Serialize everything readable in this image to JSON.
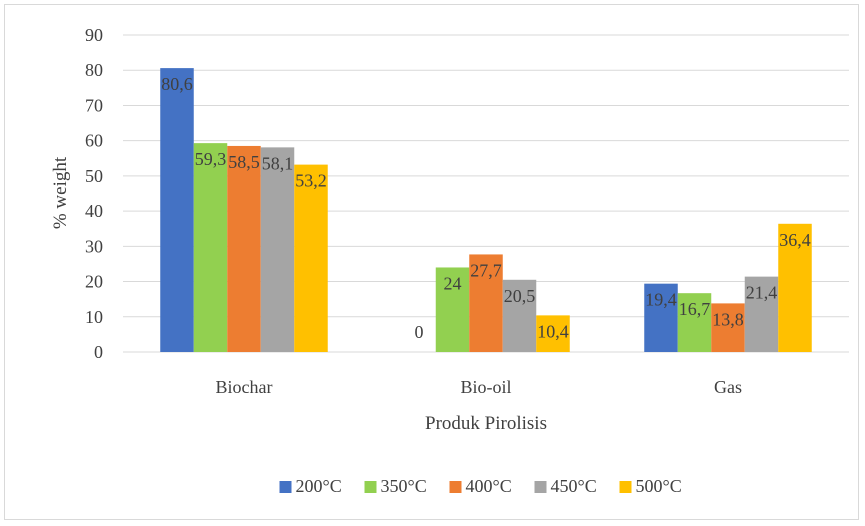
{
  "chart_data": {
    "type": "bar",
    "title": "",
    "xlabel": "Produk Pirolisis",
    "ylabel": "% weight",
    "ylim": [
      0,
      90
    ],
    "yticks": [
      0,
      10,
      20,
      30,
      40,
      50,
      60,
      70,
      80,
      90
    ],
    "grid": true,
    "legend_position": "bottom",
    "categories": [
      "Biochar",
      "Bio-oil",
      "Gas"
    ],
    "series": [
      {
        "name": "200°C",
        "color": "#4472c4",
        "values": [
          80.6,
          0,
          19.4
        ],
        "labels": [
          "80,6",
          "0",
          "19,4"
        ]
      },
      {
        "name": "350°C",
        "color": "#92d050",
        "values": [
          59.3,
          24,
          16.7
        ],
        "labels": [
          "59,3",
          "24",
          "16,7"
        ]
      },
      {
        "name": "400°C",
        "color": "#ed7d31",
        "values": [
          58.5,
          27.7,
          13.8
        ],
        "labels": [
          "58,5",
          "27,7",
          "13,8"
        ]
      },
      {
        "name": "450°C",
        "color": "#a5a5a5",
        "values": [
          58.1,
          20.5,
          21.4
        ],
        "labels": [
          "58,1",
          "20,5",
          "21,4"
        ]
      },
      {
        "name": "500°C",
        "color": "#ffc000",
        "values": [
          53.2,
          10.4,
          36.4
        ],
        "labels": [
          "53,2",
          "10,4",
          "36,4"
        ]
      }
    ]
  }
}
